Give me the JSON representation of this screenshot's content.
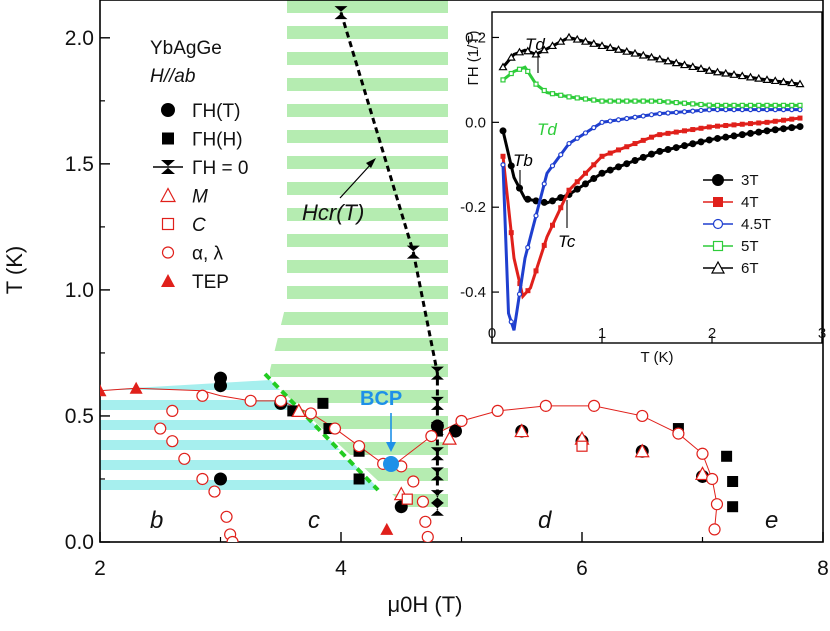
{
  "chart_data": [
    {
      "type": "scatter",
      "title": "",
      "sample": "YbAgGe",
      "field_direction": "H//ab",
      "xlabel": "μ0H (T)",
      "ylabel": "T (K)",
      "xlim": [
        2,
        8
      ],
      "ylim": [
        0,
        2.15
      ],
      "xticks": [
        "2",
        "4",
        "6",
        "8"
      ],
      "yticks": [
        "0.0",
        "0.5",
        "1.0",
        "1.5",
        "2.0"
      ],
      "legend": [
        {
          "label": "ΓH(T)",
          "marker": "filled-circle",
          "color": "#000000"
        },
        {
          "label": "ΓH(H)",
          "marker": "filled-square",
          "color": "#000000"
        },
        {
          "label": "ΓH = 0",
          "marker": "bowtie-line",
          "color": "#000000"
        },
        {
          "label": "M",
          "marker": "open-triangle",
          "color": "#e0201b"
        },
        {
          "label": "C",
          "marker": "open-square",
          "color": "#e0201b"
        },
        {
          "label": "α, λ",
          "marker": "open-circle",
          "color": "#e0201b"
        },
        {
          "label": "TEP",
          "marker": "filled-triangle",
          "color": "#e0201b"
        }
      ],
      "annotations": {
        "hcr_label": "Hcr(T)",
        "bcp_label": "BCP",
        "bcp_point": {
          "x": 4.4,
          "y": 0.31
        },
        "regions": [
          {
            "label": "b",
            "x": 2.5,
            "y": 0.1
          },
          {
            "label": "c",
            "x": 3.7,
            "y": 0.1
          },
          {
            "label": "d",
            "x": 5.7,
            "y": 0.1
          },
          {
            "label": "e",
            "x": 7.5,
            "y": 0.1
          }
        ]
      },
      "series": [
        {
          "name": "ΓH(T)",
          "points": [
            [
              3.0,
              0.65
            ],
            [
              3.0,
              0.62
            ],
            [
              3.0,
              0.25
            ],
            [
              3.5,
              0.55
            ],
            [
              4.5,
              0.14
            ],
            [
              4.8,
              0.46
            ],
            [
              4.95,
              0.44
            ],
            [
              5.5,
              0.44
            ],
            [
              6.0,
              0.4
            ],
            [
              6.5,
              0.36
            ],
            [
              7.0,
              0.26
            ]
          ]
        },
        {
          "name": "ΓH(H)",
          "points": [
            [
              3.6,
              0.52
            ],
            [
              3.85,
              0.55
            ],
            [
              3.9,
              0.45
            ],
            [
              4.15,
              0.36
            ],
            [
              4.15,
              0.25
            ],
            [
              4.8,
              0.44
            ],
            [
              6.8,
              0.45
            ],
            [
              7.2,
              0.34
            ],
            [
              7.25,
              0.24
            ],
            [
              7.25,
              0.14
            ]
          ]
        },
        {
          "name": "ΓH = 0",
          "points": [
            [
              4.0,
              2.1
            ],
            [
              4.6,
              1.15
            ],
            [
              4.8,
              0.67
            ],
            [
              4.8,
              0.55
            ],
            [
              4.8,
              0.45
            ],
            [
              4.8,
              0.35
            ],
            [
              4.8,
              0.27
            ],
            [
              4.8,
              0.18
            ],
            [
              4.8,
              0.13
            ]
          ]
        },
        {
          "name": "M",
          "points": [
            [
              3.65,
              0.52
            ],
            [
              4.5,
              0.19
            ],
            [
              4.9,
              0.41
            ],
            [
              5.5,
              0.44
            ],
            [
              6.0,
              0.41
            ],
            [
              6.5,
              0.36
            ],
            [
              7.0,
              0.27
            ]
          ]
        },
        {
          "name": "C",
          "points": [
            [
              4.55,
              0.17
            ],
            [
              6.0,
              0.38
            ]
          ]
        },
        {
          "name": "α, λ",
          "points": [
            [
              2.85,
              0.58
            ],
            [
              2.6,
              0.52
            ],
            [
              2.5,
              0.45
            ],
            [
              2.6,
              0.4
            ],
            [
              2.7,
              0.33
            ],
            [
              2.85,
              0.25
            ],
            [
              2.95,
              0.2
            ],
            [
              3.05,
              0.1
            ],
            [
              3.08,
              0.03
            ],
            [
              3.1,
              0.0
            ],
            [
              3.25,
              0.56
            ],
            [
              3.5,
              0.56
            ],
            [
              3.75,
              0.51
            ],
            [
              3.95,
              0.45
            ],
            [
              4.15,
              0.38
            ],
            [
              4.35,
              0.31
            ],
            [
              4.5,
              0.3
            ],
            [
              4.6,
              0.24
            ],
            [
              4.68,
              0.16
            ],
            [
              4.7,
              0.08
            ],
            [
              4.72,
              0.02
            ],
            [
              4.75,
              0.42
            ],
            [
              5.0,
              0.48
            ],
            [
              5.3,
              0.52
            ],
            [
              5.7,
              0.54
            ],
            [
              6.1,
              0.54
            ],
            [
              6.5,
              0.5
            ],
            [
              6.8,
              0.43
            ],
            [
              7.0,
              0.35
            ],
            [
              7.08,
              0.25
            ],
            [
              7.12,
              0.15
            ],
            [
              7.1,
              0.05
            ]
          ]
        },
        {
          "name": "TEP",
          "points": [
            [
              2.0,
              0.6
            ],
            [
              2.3,
              0.61
            ],
            [
              4.38,
              0.05
            ]
          ]
        }
      ]
    },
    {
      "type": "scatter",
      "title": "",
      "xlabel": "T (K)",
      "ylabel": "ΓH (1/T)",
      "xlim": [
        0,
        3
      ],
      "ylim": [
        -0.52,
        0.26
      ],
      "xticks": [
        "0",
        "1",
        "2",
        "3"
      ],
      "yticks": [
        "-0.4",
        "-0.2",
        "0.0",
        "0.2"
      ],
      "annotations": [
        "Td",
        "Td",
        "Tb",
        "Tc"
      ],
      "series": [
        {
          "name": "3T",
          "color": "#000000",
          "marker": "filled-circle",
          "x": [
            0.1,
            0.2,
            0.3,
            0.5,
            0.7,
            1.0,
            1.5,
            2.0,
            2.5,
            2.8
          ],
          "y": [
            -0.02,
            -0.13,
            -0.18,
            -0.19,
            -0.17,
            -0.12,
            -0.07,
            -0.04,
            -0.02,
            -0.01
          ]
        },
        {
          "name": "4T",
          "color": "#e0201b",
          "marker": "filled-square",
          "x": [
            0.1,
            0.2,
            0.28,
            0.35,
            0.5,
            0.7,
            1.0,
            1.5,
            2.0,
            2.5,
            2.8
          ],
          "y": [
            -0.08,
            -0.32,
            -0.41,
            -0.39,
            -0.27,
            -0.16,
            -0.08,
            -0.03,
            -0.01,
            0.0,
            0.01
          ]
        },
        {
          "name": "4.5T",
          "color": "#1f3fcf",
          "marker": "open-circle",
          "x": [
            0.1,
            0.15,
            0.2,
            0.3,
            0.5,
            0.7,
            1.0,
            1.5,
            2.0,
            2.5,
            2.8
          ],
          "y": [
            -0.1,
            -0.45,
            -0.49,
            -0.32,
            -0.12,
            -0.05,
            0.0,
            0.02,
            0.03,
            0.03,
            0.03
          ]
        },
        {
          "name": "5T",
          "color": "#2ecc3a",
          "marker": "open-square",
          "x": [
            0.1,
            0.2,
            0.3,
            0.4,
            0.5,
            0.7,
            1.0,
            1.5,
            2.0,
            2.5,
            2.8
          ],
          "y": [
            0.1,
            0.12,
            0.13,
            0.09,
            0.07,
            0.06,
            0.05,
            0.05,
            0.04,
            0.04,
            0.04
          ]
        },
        {
          "name": "6T",
          "color": "#000000",
          "marker": "open-triangle",
          "x": [
            0.1,
            0.2,
            0.3,
            0.4,
            0.55,
            0.7,
            1.0,
            1.5,
            2.0,
            2.5,
            2.8
          ],
          "y": [
            0.13,
            0.16,
            0.17,
            0.16,
            0.18,
            0.2,
            0.18,
            0.15,
            0.12,
            0.1,
            0.09
          ]
        }
      ]
    }
  ]
}
